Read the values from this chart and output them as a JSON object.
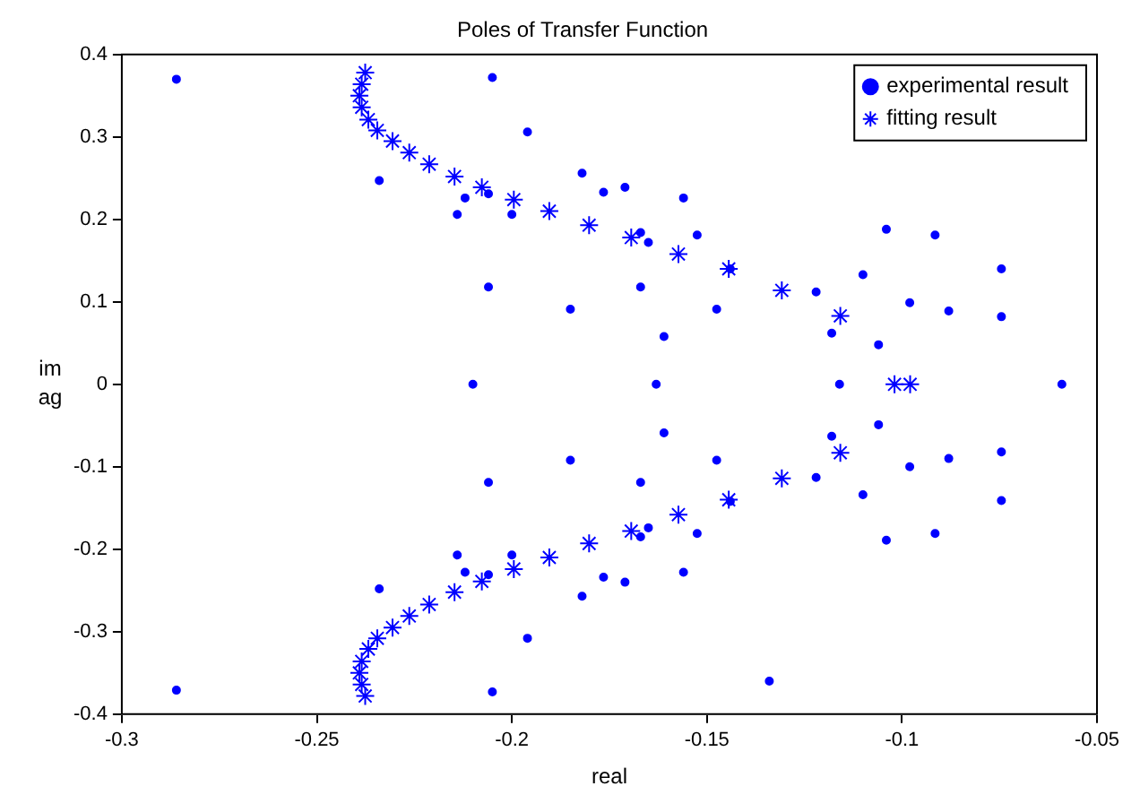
{
  "chart_data": {
    "type": "scatter",
    "title": "Poles of Transfer Function",
    "xlabel": "real",
    "ylabel": "imag",
    "xlim": [
      -0.3,
      -0.05
    ],
    "xticks": [
      -0.3,
      -0.25,
      -0.2,
      -0.15,
      -0.1,
      -0.05
    ],
    "ylim": [
      -0.4,
      0.4
    ],
    "yticks": [
      -0.4,
      -0.3,
      -0.2,
      -0.1,
      0,
      0.1,
      0.2,
      0.3,
      0.4
    ],
    "grid": false,
    "legend": "top right",
    "series": [
      {
        "name": "experimental result",
        "color": "#0000ff",
        "marker": "circle",
        "x": [
          -0.286,
          -0.205,
          -0.196,
          -0.234,
          -0.182,
          -0.1765,
          -0.212,
          -0.206,
          -0.214,
          -0.2,
          -0.206,
          -0.185,
          -0.21,
          -0.171,
          -0.156,
          -0.167,
          -0.165,
          -0.1525,
          -0.167,
          -0.1475,
          -0.161,
          -0.163,
          -0.122,
          -0.11,
          -0.104,
          -0.0915,
          -0.098,
          -0.088,
          -0.0745,
          -0.0745,
          -0.118,
          -0.106,
          -0.116,
          -0.059,
          -0.144,
          -0.286,
          -0.205,
          -0.196,
          -0.234,
          -0.212,
          -0.206,
          -0.214,
          -0.2,
          -0.182,
          -0.1765,
          -0.206,
          -0.185,
          -0.171,
          -0.156,
          -0.167,
          -0.165,
          -0.1525,
          -0.167,
          -0.1475,
          -0.161,
          -0.144,
          -0.122,
          -0.11,
          -0.104,
          -0.0915,
          -0.098,
          -0.088,
          -0.0745,
          -0.0745,
          -0.118,
          -0.106,
          -0.134
        ],
        "values": [
          0.37,
          0.372,
          0.306,
          0.247,
          0.256,
          0.233,
          0.226,
          0.231,
          0.206,
          0.206,
          0.118,
          0.091,
          0,
          0.239,
          0.226,
          0.184,
          0.172,
          0.181,
          0.118,
          0.091,
          0.058,
          0,
          0.112,
          0.133,
          0.188,
          0.181,
          0.099,
          0.089,
          0.14,
          0.082,
          0.062,
          0.048,
          0,
          0,
          0.14,
          -0.371,
          -0.373,
          -0.308,
          -0.248,
          -0.228,
          -0.231,
          -0.207,
          -0.207,
          -0.257,
          -0.234,
          -0.119,
          -0.092,
          -0.24,
          -0.228,
          -0.185,
          -0.174,
          -0.181,
          -0.119,
          -0.092,
          -0.059,
          -0.142,
          -0.113,
          -0.134,
          -0.189,
          -0.181,
          -0.1,
          -0.09,
          -0.082,
          -0.141,
          -0.063,
          -0.049,
          -0.36
        ]
      },
      {
        "name": "fitting result",
        "color": "#0000ff",
        "marker": "cross",
        "x": [
          -0.2376,
          -0.2385,
          -0.2391,
          -0.2385,
          -0.2368,
          -0.2345,
          -0.2306,
          -0.2263,
          -0.2212,
          -0.2147,
          -0.2077,
          -0.1995,
          -0.1904,
          -0.1802,
          -0.1694,
          -0.1573,
          -0.1444,
          -0.1308,
          -0.1158,
          -0.1019,
          -0.0979,
          -0.2376,
          -0.2385,
          -0.2391,
          -0.2385,
          -0.2368,
          -0.2345,
          -0.2306,
          -0.2263,
          -0.2212,
          -0.2147,
          -0.2077,
          -0.1995,
          -0.1904,
          -0.1802,
          -0.1694,
          -0.1573,
          -0.1444,
          -0.1308,
          -0.1158
        ],
        "values": [
          0.378,
          0.364,
          0.35,
          0.336,
          0.321,
          0.308,
          0.295,
          0.281,
          0.267,
          0.252,
          0.239,
          0.224,
          0.21,
          0.193,
          0.178,
          0.158,
          0.14,
          0.114,
          0.083,
          0,
          0,
          -0.378,
          -0.364,
          -0.35,
          -0.336,
          -0.321,
          -0.308,
          -0.295,
          -0.281,
          -0.267,
          -0.252,
          -0.239,
          -0.224,
          -0.21,
          -0.193,
          -0.178,
          -0.158,
          -0.14,
          -0.114,
          -0.083
        ]
      }
    ]
  }
}
